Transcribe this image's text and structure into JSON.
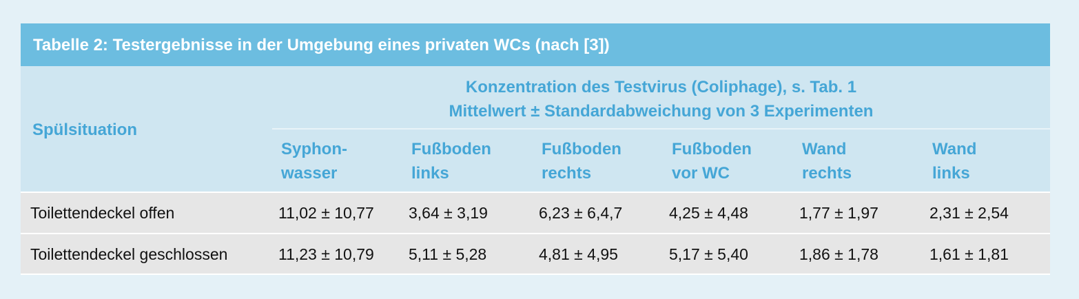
{
  "table": {
    "title": "Tabelle 2: Testergebnisse in der Umgebung eines privaten WCs (nach [3])",
    "row_header": "Spülsituation",
    "group_header": [
      "Konzentration des Testvirus (Coliphage), s. Tab. 1",
      "Mittelwert ± Standardabweichung von 3 Experimenten"
    ],
    "columns": [
      [
        "Syphon-",
        "wasser"
      ],
      [
        "Fußboden",
        "links"
      ],
      [
        "Fußboden",
        "rechts"
      ],
      [
        "Fußboden",
        "vor WC"
      ],
      [
        "Wand",
        "rechts"
      ],
      [
        "Wand",
        "links"
      ]
    ],
    "rows": [
      [
        "Toilettendeckel offen",
        "11,02 ± 10,77",
        "3,64 ± 3,19",
        "6,23 ± 6,4,7",
        "4,25 ± 4,48",
        "1,77 ± 1,97",
        "2,31 ± 2,54"
      ],
      [
        "Toilettendeckel geschlossen",
        "11,23 ± 10,79",
        "5,11 ± 5,28",
        "4,81 ± 4,95",
        "5,17 ± 5,40",
        "1,86 ± 1,78",
        "1,61 ± 1,81"
      ]
    ]
  }
}
